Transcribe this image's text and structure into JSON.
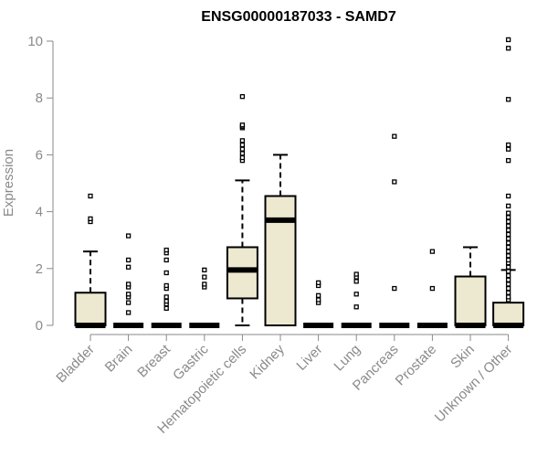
{
  "chart_data": {
    "type": "box",
    "title": "ENSG00000187033 - SAMD7",
    "xlabel": "",
    "ylabel": "Expression",
    "ylim": [
      0,
      10
    ],
    "yticks": [
      0,
      2,
      4,
      6,
      8,
      10
    ],
    "categories": [
      "Bladder",
      "Brain",
      "Breast",
      "Gastric",
      "Hematopoietic cells",
      "Kidney",
      "Liver",
      "Lung",
      "Pancreas",
      "Prostate",
      "Skin",
      "Unknown / Other"
    ],
    "box_color": "#EDE8D0",
    "boxes": [
      {
        "q1": 0,
        "median": 0,
        "q3": 1.15,
        "whisker_low": 0,
        "whisker_high": 2.6,
        "outliers": [
          3.65,
          3.75,
          4.55
        ]
      },
      {
        "q1": 0,
        "median": 0,
        "q3": 0,
        "whisker_low": 0,
        "whisker_high": 0,
        "outliers": [
          0.45,
          0.8,
          1.0,
          1.1,
          1.35,
          1.45,
          2.05,
          2.3,
          3.15
        ]
      },
      {
        "q1": 0,
        "median": 0,
        "q3": 0,
        "whisker_low": 0,
        "whisker_high": 0,
        "outliers": [
          0.6,
          0.75,
          0.85,
          1.0,
          1.3,
          1.4,
          1.85,
          2.3,
          2.55,
          2.65
        ]
      },
      {
        "q1": 0,
        "median": 0,
        "q3": 0,
        "whisker_low": 0,
        "whisker_high": 0,
        "outliers": [
          1.35,
          1.45,
          1.7,
          1.95
        ]
      },
      {
        "q1": 0.95,
        "median": 1.95,
        "q3": 2.75,
        "whisker_low": 0,
        "whisker_high": 5.1,
        "outliers": [
          5.8,
          5.9,
          6.05,
          6.2,
          6.35,
          6.5,
          6.95,
          7.0,
          7.05,
          8.05
        ]
      },
      {
        "q1": 0,
        "median": 3.7,
        "q3": 4.55,
        "whisker_low": 0,
        "whisker_high": 6.0,
        "outliers": []
      },
      {
        "q1": 0,
        "median": 0,
        "q3": 0,
        "whisker_low": 0,
        "whisker_high": 0,
        "outliers": [
          0.8,
          0.9,
          1.05,
          1.4,
          1.5
        ]
      },
      {
        "q1": 0,
        "median": 0,
        "q3": 0,
        "whisker_low": 0,
        "whisker_high": 0,
        "outliers": [
          0.65,
          1.1,
          1.55,
          1.7,
          1.8
        ]
      },
      {
        "q1": 0,
        "median": 0,
        "q3": 0,
        "whisker_low": 0,
        "whisker_high": 0,
        "outliers": [
          1.3,
          5.05,
          6.65
        ]
      },
      {
        "q1": 0,
        "median": 0,
        "q3": 0,
        "whisker_low": 0,
        "whisker_high": 0,
        "outliers": [
          1.3,
          2.6
        ]
      },
      {
        "q1": 0,
        "median": 0,
        "q3": 1.72,
        "whisker_low": 0,
        "whisker_high": 2.75,
        "outliers": []
      },
      {
        "q1": 0,
        "median": 0,
        "q3": 0.8,
        "whisker_low": 0,
        "whisker_high": 1.95,
        "outliers": [
          0.9,
          1.0,
          1.15,
          1.3,
          1.45,
          1.6,
          1.75,
          1.9,
          2.05,
          2.2,
          2.3,
          2.45,
          2.6,
          2.75,
          2.9,
          3.05,
          3.2,
          3.35,
          3.5,
          3.65,
          3.8,
          3.95,
          4.2,
          4.55,
          5.8,
          6.2,
          6.35,
          7.95,
          9.75,
          10.05
        ]
      }
    ]
  }
}
